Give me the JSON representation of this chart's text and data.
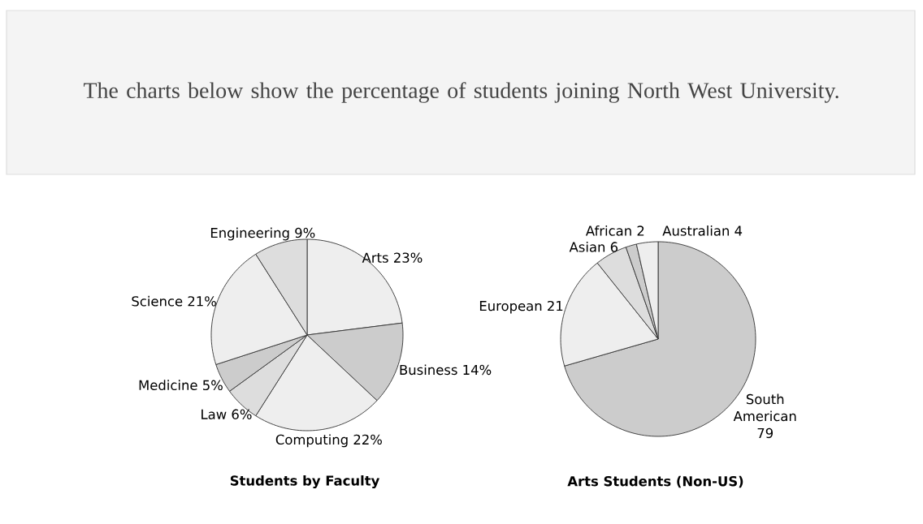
{
  "chart_data": [
    {
      "type": "other",
      "title": "The charts below show the percentage of students joining North West University."
    },
    {
      "type": "pie",
      "title": "Students by Faculty",
      "categories": [
        "Arts",
        "Business",
        "Computing",
        "Law",
        "Medicine",
        "Science",
        "Engineering"
      ],
      "values": [
        23,
        14,
        22,
        6,
        5,
        21,
        9
      ],
      "value_labels": [
        "23%",
        "14%",
        "22%",
        "6%",
        "5%",
        "21%",
        "9%"
      ],
      "colors": [
        "#eeeeee",
        "#cccccc",
        "#eeeeee",
        "#dddddd",
        "#cccccc",
        "#eeeeee",
        "#dddddd"
      ]
    },
    {
      "type": "pie",
      "title": "Arts Students (Non-US)",
      "categories": [
        "South American",
        "European",
        "Asian",
        "African",
        "Australian"
      ],
      "values": [
        79,
        21,
        6,
        2,
        4
      ],
      "value_labels": [
        "79",
        "21",
        "6",
        "2",
        "4"
      ],
      "colors": [
        "#cccccc",
        "#eeeeee",
        "#dddddd",
        "#cccccc",
        "#eeeeee"
      ]
    }
  ]
}
